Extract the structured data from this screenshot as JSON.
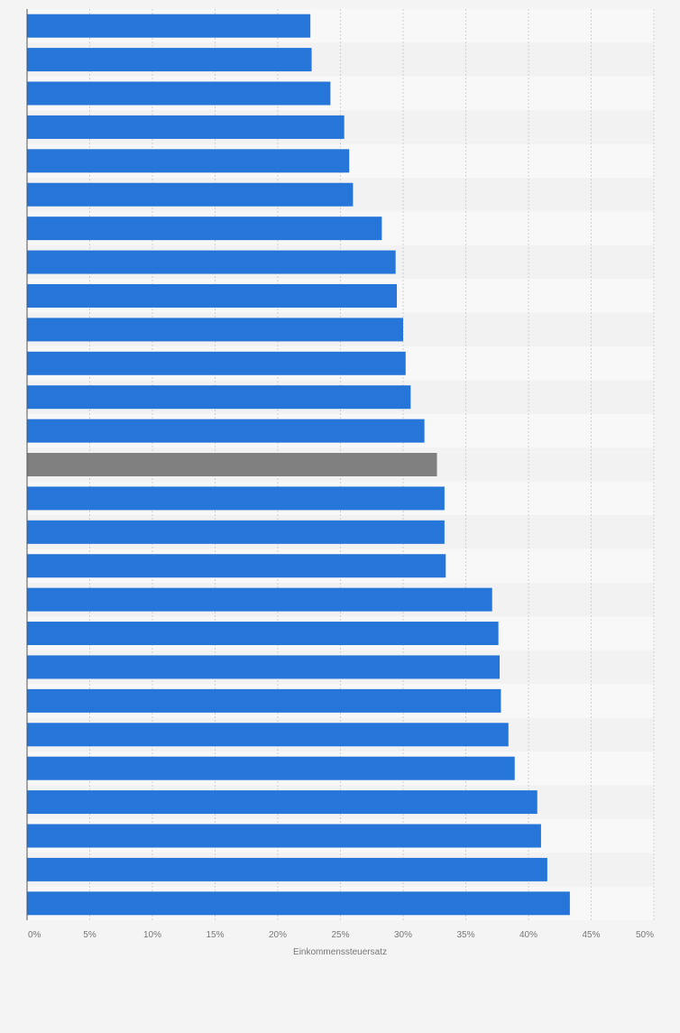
{
  "chart_data": {
    "type": "bar",
    "orientation": "horizontal",
    "title": "",
    "xlabel": "Einkommenssteuersatz",
    "ylabel": "",
    "xlim": [
      0,
      50
    ],
    "x_ticks": [
      "0%",
      "5%",
      "10%",
      "15%",
      "20%",
      "25%",
      "30%",
      "35%",
      "40%",
      "45%",
      "50%"
    ],
    "grid": true,
    "category_labels_visible": false,
    "values": [
      22.6,
      22.7,
      24.2,
      25.3,
      25.7,
      26.0,
      28.3,
      29.4,
      29.5,
      30.0,
      30.2,
      30.6,
      31.7,
      32.7,
      33.3,
      33.3,
      33.4,
      37.1,
      37.6,
      37.7,
      37.8,
      38.4,
      38.9,
      40.7,
      41.0,
      41.5,
      43.3
    ],
    "highlight_index": 13,
    "colors": {
      "bar": "#2675d9",
      "highlight": "#808080",
      "background": "#f4f4f4",
      "band_light": "#f8f8f8",
      "band_dark": "#f2f2f2",
      "grid": "#d0d0d0",
      "axis": "#555555",
      "tick_text": "#777777"
    }
  }
}
